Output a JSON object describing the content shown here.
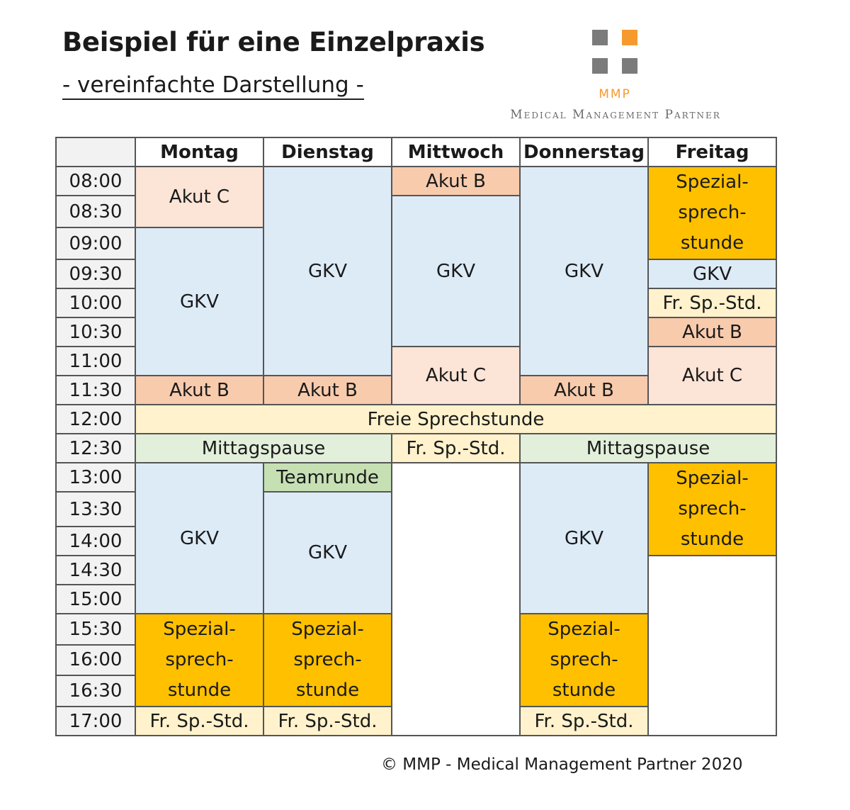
{
  "header": {
    "title": "Beispiel für eine Einzelpraxis",
    "subtitle": "- vereinfachte Darstellung -"
  },
  "logo": {
    "abbr": "MMP",
    "name": "Medical Management Partner",
    "colors": {
      "grey": "#7b7b7b",
      "orange": "#f79a2e"
    }
  },
  "schedule": {
    "days": [
      "Montag",
      "Dienstag",
      "Mittwoch",
      "Donnerstag",
      "Freitag"
    ],
    "times": [
      "08:00",
      "08:30",
      "09:00",
      "09:30",
      "10:00",
      "10:30",
      "11:00",
      "11:30",
      "12:00",
      "12:30",
      "13:00",
      "13:30",
      "14:00",
      "14:30",
      "15:00",
      "15:30",
      "16:00",
      "16:30",
      "17:00"
    ],
    "labels": {
      "gkv": "GKV",
      "akut_b": "Akut B",
      "akut_c": "Akut C",
      "spezial_1": "Spezial-",
      "spezial_2": "sprech-",
      "spezial_3": "stunde",
      "fr_sp_std": "Fr. Sp.-Std.",
      "freie_sprechstunde": "Freie Sprechstunde",
      "mittagspause": "Mittagspause",
      "teamrunde": "Teamrunde"
    },
    "colors": {
      "gkv": "#ddebf7",
      "akut_c": "#fce4d6",
      "akut_b": "#f8cbad",
      "spezial": "#ffc000",
      "fr_sp_std": "#fff2cc",
      "mittagspause": "#e2efda",
      "teamrunde": "#c6e0b4"
    }
  },
  "footer": "© MMP - Medical Management Partner 2020"
}
